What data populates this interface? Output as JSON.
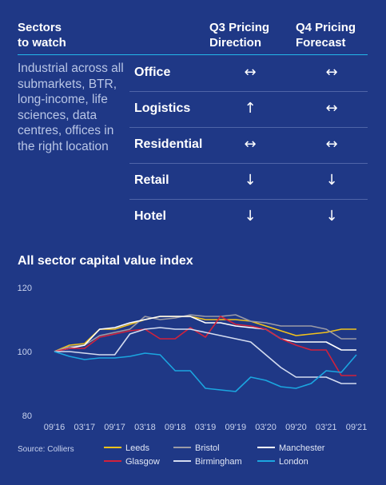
{
  "header": {
    "sectors": "Sectors\nto watch",
    "q3": "Q3 Pricing\nDirection",
    "q4": "Q4 Pricing\nForecast"
  },
  "note": "Industrial across all submarkets, BTR, long-income, life sciences, data centres, offices in the right location",
  "sectors": [
    {
      "name": "Office",
      "q3": "↔",
      "q4": "↔"
    },
    {
      "name": "Logistics",
      "q3": "↑",
      "q4": "↔"
    },
    {
      "name": "Residential",
      "q3": "↔",
      "q4": "↔"
    },
    {
      "name": "Retail",
      "q3": "↓",
      "q4": "↓"
    },
    {
      "name": "Hotel",
      "q3": "↓",
      "q4": "↓"
    }
  ],
  "chart_title": "All sector capital value index",
  "source": "Source: Colliers",
  "colors": {
    "background": "#1f3886",
    "Leeds": "#f2c21b",
    "Bristol": "#9b9ba6",
    "Manchester": "#ffffff",
    "Glasgow": "#d2213b",
    "Birmingham": "#d4dcf0",
    "London": "#1ba6e0"
  },
  "chart_data": {
    "type": "line",
    "title": "All sector capital value index",
    "xlabel": "",
    "ylabel": "",
    "ylim": [
      80,
      120
    ],
    "yticks": [
      80,
      100,
      120
    ],
    "x_tick_labels": [
      "09'16",
      "03'17",
      "09'17",
      "03'18",
      "09'18",
      "03'19",
      "09'19",
      "03'20",
      "09'20",
      "03'21",
      "09'21"
    ],
    "x": [
      "09'16",
      "12'16",
      "03'17",
      "06'17",
      "09'17",
      "12'17",
      "03'18",
      "06'18",
      "09'18",
      "12'18",
      "03'19",
      "06'19",
      "09'19",
      "12'19",
      "03'20",
      "06'20",
      "09'20",
      "12'20",
      "03'21",
      "06'21",
      "09'21"
    ],
    "legend_position": "bottom",
    "series": [
      {
        "name": "Leeds",
        "color": "#f2c21b",
        "values": [
          100,
          102,
          102.5,
          107,
          107,
          108.5,
          110,
          111,
          111,
          111,
          110,
          110,
          110,
          109.5,
          108,
          106.5,
          105,
          105.5,
          106,
          107,
          107
        ]
      },
      {
        "name": "Bristol",
        "color": "#9b9ba6",
        "values": [
          100,
          101.5,
          102,
          105,
          106,
          107,
          111,
          110,
          110.5,
          111.5,
          111,
          111,
          111.5,
          109.5,
          109,
          108,
          108,
          108,
          107,
          104,
          104
        ]
      },
      {
        "name": "Manchester",
        "color": "#ffffff",
        "values": [
          100,
          101,
          102,
          107,
          107.5,
          109,
          110,
          111,
          111,
          111,
          109,
          109,
          108,
          107.5,
          107,
          104,
          103,
          103,
          103,
          100.5,
          100.5
        ]
      },
      {
        "name": "Glasgow",
        "color": "#d2213b",
        "values": [
          100,
          101,
          101,
          104.5,
          105.5,
          106.5,
          107,
          104,
          104,
          107.5,
          104.5,
          111,
          108.5,
          108,
          107,
          104,
          102,
          100.5,
          100.5,
          92.5,
          92.5
        ]
      },
      {
        "name": "Birmingham",
        "color": "#d4dcf0",
        "values": [
          100,
          100,
          99.5,
          99,
          99,
          105.5,
          107,
          107.5,
          107,
          107,
          106,
          105,
          104,
          103,
          99,
          95,
          92,
          92,
          92,
          90,
          90
        ]
      },
      {
        "name": "London",
        "color": "#1ba6e0",
        "values": [
          100,
          98.5,
          97.5,
          98,
          98,
          98.5,
          99.5,
          99,
          94,
          94,
          88.5,
          88,
          87.5,
          92,
          91,
          89,
          88.5,
          90,
          94,
          93.5,
          99
        ]
      }
    ]
  }
}
